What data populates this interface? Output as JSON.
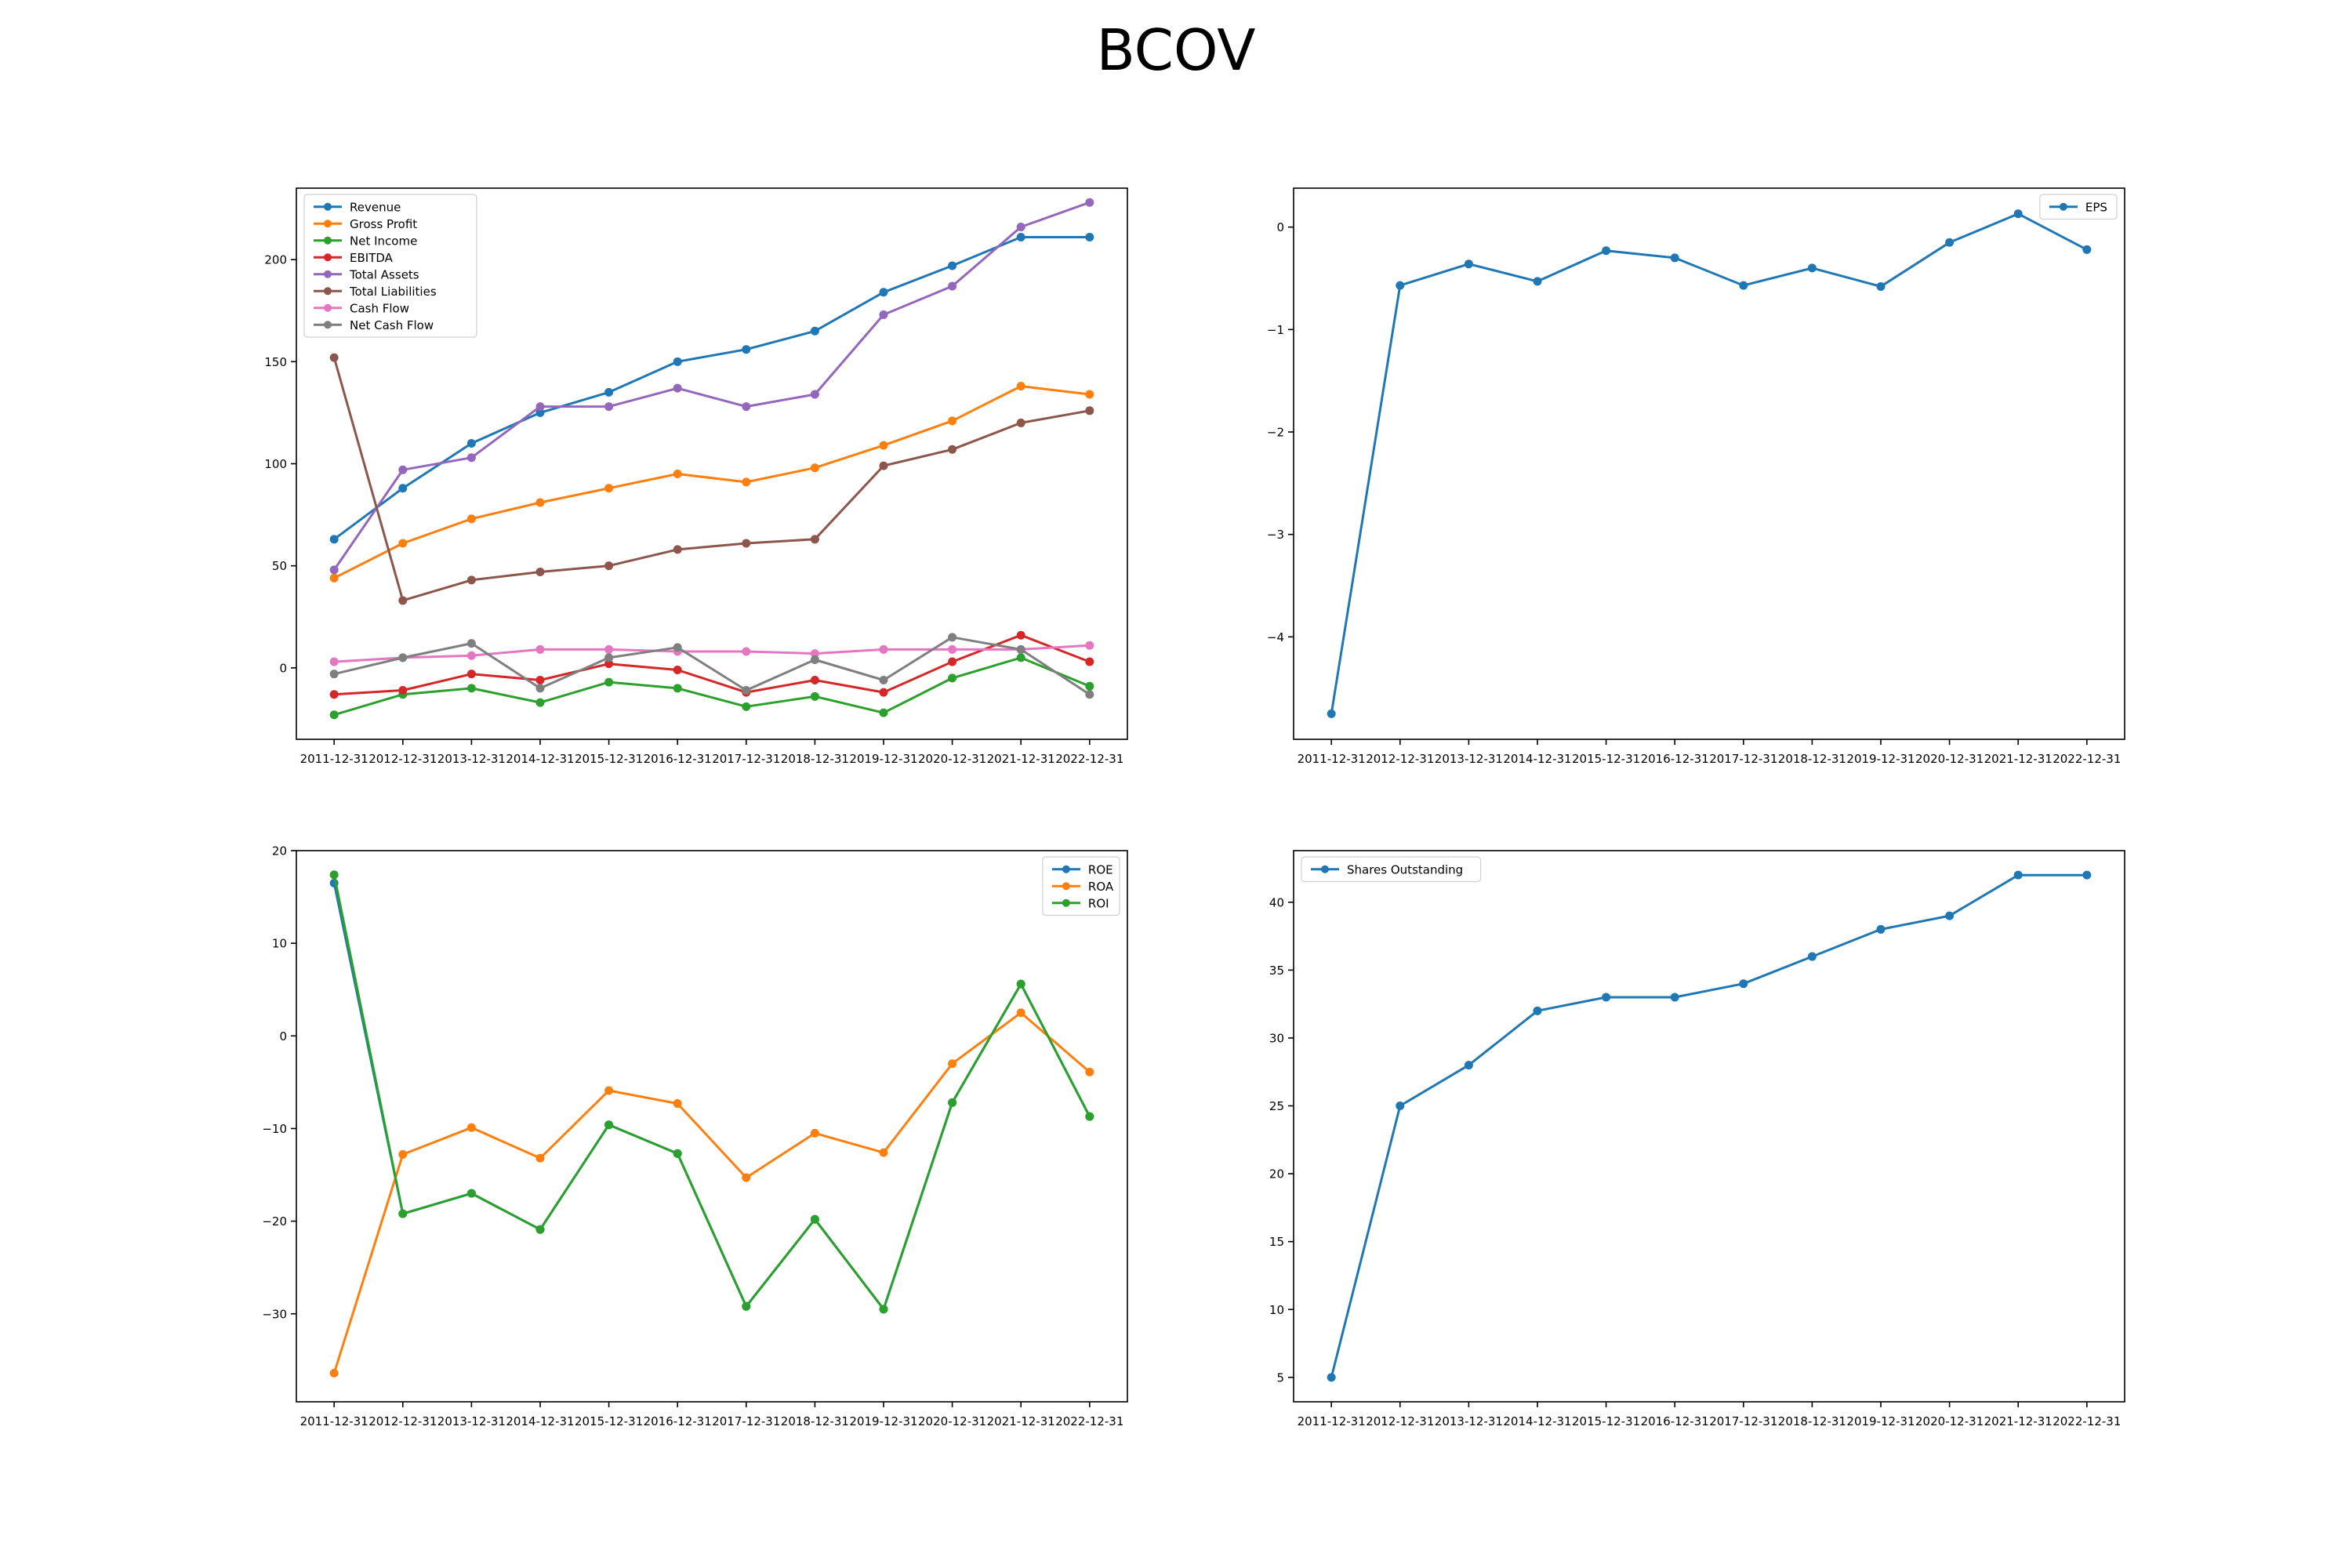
{
  "title": "BCOV",
  "chart_data": [
    {
      "type": "line",
      "x": [
        "2011-12-31",
        "2012-12-31",
        "2013-12-31",
        "2014-12-31",
        "2015-12-31",
        "2016-12-31",
        "2017-12-31",
        "2018-12-31",
        "2019-12-31",
        "2020-12-31",
        "2021-12-31",
        "2022-12-31"
      ],
      "ylim": [
        -35,
        235
      ],
      "yticks": [
        0,
        50,
        100,
        150,
        200
      ],
      "legend": "upper left",
      "series": [
        {
          "name": "Revenue",
          "color": "#1f77b4",
          "values": [
            63,
            88,
            110,
            125,
            135,
            150,
            156,
            165,
            184,
            197,
            211,
            211
          ]
        },
        {
          "name": "Gross Profit",
          "color": "#ff7f0e",
          "values": [
            44,
            61,
            73,
            81,
            88,
            95,
            91,
            98,
            109,
            121,
            138,
            134
          ]
        },
        {
          "name": "Net Income",
          "color": "#2ca02c",
          "values": [
            -23,
            -13,
            -10,
            -17,
            -7,
            -10,
            -19,
            -14,
            -22,
            -5,
            5,
            -9
          ]
        },
        {
          "name": "EBITDA",
          "color": "#d62728",
          "values": [
            -13,
            -11,
            -3,
            -6,
            2,
            -1,
            -12,
            -6,
            -12,
            3,
            16,
            3
          ]
        },
        {
          "name": "Total Assets",
          "color": "#9467bd",
          "values": [
            48,
            97,
            103,
            128,
            128,
            137,
            128,
            134,
            173,
            187,
            216,
            228
          ]
        },
        {
          "name": "Total Liabilities",
          "color": "#8c564b",
          "values": [
            152,
            33,
            43,
            47,
            50,
            58,
            61,
            63,
            99,
            107,
            120,
            126
          ]
        },
        {
          "name": "Cash Flow",
          "color": "#e377c2",
          "values": [
            3,
            5,
            6,
            9,
            9,
            8,
            8,
            7,
            9,
            9,
            9,
            11
          ]
        },
        {
          "name": "Net Cash Flow",
          "color": "#7f7f7f",
          "values": [
            -3,
            5,
            12,
            -10,
            5,
            10,
            -11,
            4,
            -6,
            15,
            9,
            -13
          ]
        }
      ]
    },
    {
      "type": "line",
      "x": [
        "2011-12-31",
        "2012-12-31",
        "2013-12-31",
        "2014-12-31",
        "2015-12-31",
        "2016-12-31",
        "2017-12-31",
        "2018-12-31",
        "2019-12-31",
        "2020-12-31",
        "2021-12-31",
        "2022-12-31"
      ],
      "ylim": [
        -5.0,
        0.38
      ],
      "yticks": [
        -4,
        -3,
        -2,
        -1,
        0
      ],
      "tick_labels": [
        "−4",
        "−3",
        "−2",
        "−1",
        "0"
      ],
      "legend": "upper right",
      "series": [
        {
          "name": "EPS",
          "color": "#1f77b4",
          "values": [
            -4.75,
            -0.57,
            -0.36,
            -0.53,
            -0.23,
            -0.3,
            -0.57,
            -0.4,
            -0.58,
            -0.15,
            0.13,
            -0.22
          ]
        }
      ]
    },
    {
      "type": "line",
      "x": [
        "2011-12-31",
        "2012-12-31",
        "2013-12-31",
        "2014-12-31",
        "2015-12-31",
        "2016-12-31",
        "2017-12-31",
        "2018-12-31",
        "2019-12-31",
        "2020-12-31",
        "2021-12-31",
        "2022-12-31"
      ],
      "ylim": [
        -39.5,
        20
      ],
      "yticks": [
        -30,
        -20,
        -10,
        0,
        10,
        20
      ],
      "tick_labels": [
        "−30",
        "−20",
        "−10",
        "0",
        "10",
        "20"
      ],
      "legend": "upper right",
      "series": [
        {
          "name": "ROE",
          "color": "#1f77b4",
          "values": [
            16.5,
            -19.2,
            -17.0,
            -20.9,
            -9.6,
            -12.7,
            -29.2,
            -19.8,
            -29.5,
            -7.2,
            5.6,
            -8.7
          ]
        },
        {
          "name": "ROA",
          "color": "#ff7f0e",
          "values": [
            -36.4,
            -12.8,
            -9.9,
            -13.2,
            -5.9,
            -7.3,
            -15.3,
            -10.5,
            -12.6,
            -3.0,
            2.5,
            -3.9
          ]
        },
        {
          "name": "ROI",
          "color": "#2ca02c",
          "values": [
            17.4,
            -19.2,
            -17.0,
            -20.9,
            -9.6,
            -12.7,
            -29.2,
            -19.8,
            -29.5,
            -7.2,
            5.6,
            -8.7
          ]
        }
      ]
    },
    {
      "type": "line",
      "x": [
        "2011-12-31",
        "2012-12-31",
        "2013-12-31",
        "2014-12-31",
        "2015-12-31",
        "2016-12-31",
        "2017-12-31",
        "2018-12-31",
        "2019-12-31",
        "2020-12-31",
        "2021-12-31",
        "2022-12-31"
      ],
      "ylim": [
        3.2,
        43.8
      ],
      "yticks": [
        5,
        10,
        15,
        20,
        25,
        30,
        35,
        40
      ],
      "legend": "upper left",
      "series": [
        {
          "name": "Shares Outstanding",
          "color": "#1f77b4",
          "values": [
            5,
            25,
            28,
            32,
            33,
            33,
            34,
            36,
            38,
            39,
            42,
            42
          ]
        }
      ]
    }
  ]
}
